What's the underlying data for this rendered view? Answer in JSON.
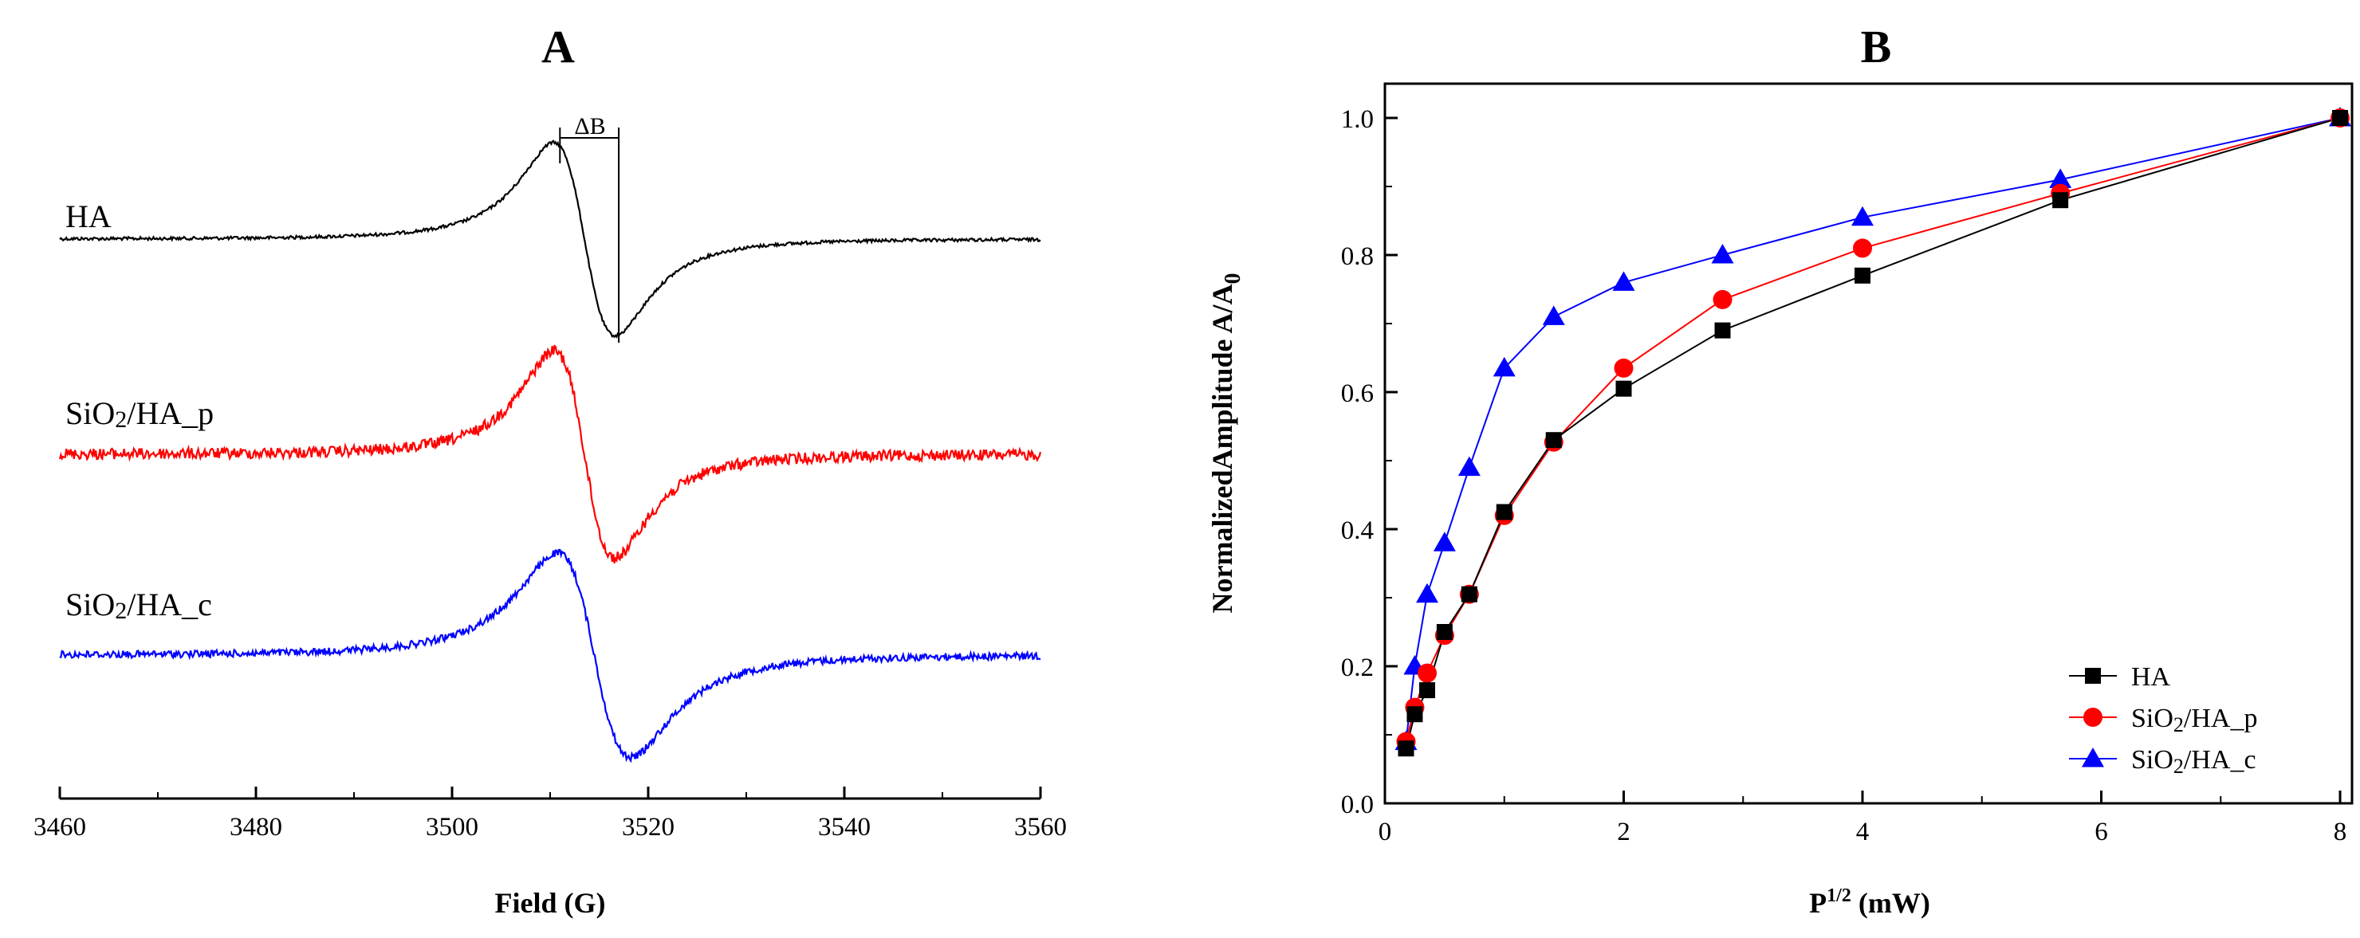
{
  "chart_data": [
    {
      "panel": "A",
      "type": "line",
      "title": "A",
      "xlabel": "Field (G)",
      "ylabel": "",
      "xlim": [
        3460,
        3560
      ],
      "xticks": [
        "3460",
        "3480",
        "3500",
        "3520",
        "3540",
        "3560"
      ],
      "yaxis_shown": false,
      "annotation": "ΔB",
      "annotation_field_range": [
        3511,
        3517
      ],
      "series": [
        {
          "name": "HA",
          "color": "#000000",
          "center_field": 3513.5,
          "peak_field": 3510.5,
          "trough_field": 3516.8,
          "noise": "low"
        },
        {
          "name": "SiO2/HA_p",
          "color": "#ff0000",
          "center_field": 3513.5,
          "peak_field": 3510.7,
          "trough_field": 3516.9,
          "noise": "high"
        },
        {
          "name": "SiO2/HA_c",
          "color": "#0000ff",
          "center_field": 3514.5,
          "peak_field": 3511.0,
          "trough_field": 3518.5,
          "noise": "medium"
        }
      ],
      "labels": {
        "ha": "HA",
        "p_pre": "SiO",
        "p_sub": "2",
        "p_post": "/HA_p",
        "c_pre": "SiO",
        "c_sub": "2",
        "c_post": "/HA_c"
      }
    },
    {
      "panel": "B",
      "type": "line",
      "title": "B",
      "xlabel_main": "P",
      "xlabel_sup": "1/2",
      "xlabel_unit": " (mW)",
      "ylabel_main": "NormalizedAmplitude A/A",
      "ylabel_sub": "0",
      "xlim": [
        0,
        8.1
      ],
      "ylim": [
        0,
        1.05
      ],
      "xticks": [
        0,
        2,
        4,
        6,
        8
      ],
      "yticks": [
        0.0,
        0.2,
        0.4,
        0.6,
        0.8,
        1.0
      ],
      "ytick_labels": [
        "0.0",
        "0.2",
        "0.4",
        "0.6",
        "0.8",
        "1.0"
      ],
      "legend_position": "bottom-right",
      "series": [
        {
          "name": "HA",
          "legend_pre": "HA",
          "legend_sub": "",
          "legend_post": "",
          "color": "#000000",
          "marker": "square",
          "x": [
            0.177,
            0.25,
            0.354,
            0.5,
            0.707,
            1.0,
            1.414,
            2.0,
            2.828,
            4.0,
            5.657,
            8.0
          ],
          "y": [
            0.08,
            0.13,
            0.165,
            0.25,
            0.305,
            0.425,
            0.53,
            0.605,
            0.69,
            0.77,
            0.88,
            1.0
          ]
        },
        {
          "name": "SiO2/HA_p",
          "legend_pre": "SiO",
          "legend_sub": "2",
          "legend_post": "/HA_p",
          "color": "#ff0000",
          "marker": "circle",
          "x": [
            0.177,
            0.25,
            0.354,
            0.5,
            0.707,
            1.0,
            1.414,
            2.0,
            2.828,
            4.0,
            5.657,
            8.0
          ],
          "y": [
            0.09,
            0.14,
            0.19,
            0.245,
            0.305,
            0.42,
            0.527,
            0.635,
            0.735,
            0.81,
            0.89,
            1.0
          ]
        },
        {
          "name": "SiO2/HA_c",
          "legend_pre": "SiO",
          "legend_sub": "2",
          "legend_post": "/HA_c",
          "color": "#0000ff",
          "marker": "triangle",
          "x": [
            0.177,
            0.25,
            0.354,
            0.5,
            0.707,
            1.0,
            1.414,
            2.0,
            2.828,
            4.0,
            5.657,
            8.0
          ],
          "y": [
            0.09,
            0.2,
            0.305,
            0.38,
            0.49,
            0.635,
            0.71,
            0.76,
            0.8,
            0.855,
            0.91,
            1.0
          ]
        }
      ]
    }
  ]
}
